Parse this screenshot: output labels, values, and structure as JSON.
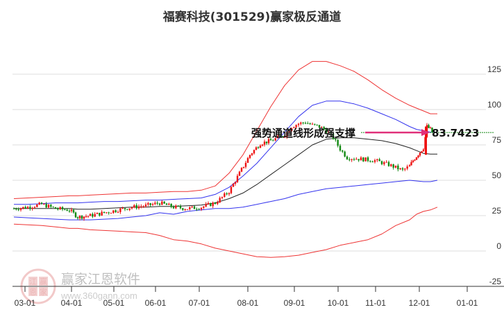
{
  "title": "福赛科技(301529)赢家极反通道",
  "annotation": {
    "text": "强势通道线形成强支撑",
    "value": "83.7423",
    "arrow_color": "#e0307a"
  },
  "watermark": {
    "brand": "赢家江恩软件",
    "url": "www.360gann.com",
    "logo_chars": [
      "江",
      "赢",
      "恩",
      "家"
    ]
  },
  "colors": {
    "up": "#ee1111",
    "down": "#118811",
    "outer_band": "#ee3333",
    "inner_band": "#3333ee",
    "mid_line": "#222222",
    "grid": "#dddddd",
    "ref_line": "#118811"
  },
  "chart_data": {
    "type": "line",
    "title": "福赛科技(301529)赢家极反通道",
    "xlabel": "",
    "ylabel": "",
    "ylim": [
      -25,
      135
    ],
    "yticks": [
      125,
      100,
      75,
      50,
      25,
      0,
      -25
    ],
    "xticks": [
      {
        "label": "03-01",
        "x": 36
      },
      {
        "label": "04-01",
        "x": 103
      },
      {
        "label": "05-01",
        "x": 164
      },
      {
        "label": "06-01",
        "x": 224
      },
      {
        "label": "07-01",
        "x": 287
      },
      {
        "label": "08-01",
        "x": 357
      },
      {
        "label": "09-01",
        "x": 424
      },
      {
        "label": "10-01",
        "x": 487
      },
      {
        "label": "11-01",
        "x": 541
      },
      {
        "label": "12-01",
        "x": 604
      },
      {
        "label": "01-01",
        "x": 673
      }
    ],
    "grid": true,
    "legend": null,
    "reference_line": {
      "value": 83.7423,
      "label": "83.7423"
    },
    "x_index": [
      20,
      40,
      60,
      80,
      100,
      112,
      130,
      150,
      170,
      190,
      210,
      230,
      250,
      270,
      290,
      310,
      330,
      350,
      370,
      390,
      410,
      430,
      450,
      470,
      490,
      510,
      530,
      550,
      570,
      590,
      600,
      610,
      620,
      630
    ],
    "series": [
      {
        "name": "outer_upper",
        "color": "#ee3333",
        "values": [
          37,
          37.5,
          38,
          38.5,
          39,
          39,
          39.5,
          40,
          40.5,
          41,
          41,
          41.5,
          42,
          42,
          43,
          46,
          55,
          68,
          85,
          102,
          117,
          128,
          134,
          134,
          131,
          127,
          121,
          114,
          108,
          103,
          101,
          99,
          97,
          97
        ]
      },
      {
        "name": "inner_upper",
        "color": "#3333ee",
        "values": [
          33,
          33,
          33.5,
          34,
          34,
          34,
          34.5,
          35,
          35,
          35.5,
          36,
          36,
          36.5,
          37,
          37.5,
          40,
          45,
          53,
          62,
          73,
          84,
          95,
          103,
          106,
          106,
          104,
          101,
          97,
          93,
          88,
          86,
          85,
          84,
          84
        ]
      },
      {
        "name": "mid",
        "color": "#222222",
        "values": [
          30,
          30,
          30,
          30,
          30,
          29.5,
          29.5,
          30,
          30.5,
          31,
          31,
          31.5,
          31.5,
          32,
          32.5,
          34,
          37,
          41,
          47,
          54,
          61,
          68,
          75,
          79,
          80,
          80,
          79,
          78,
          76,
          73,
          71,
          69,
          68.5,
          68.5
        ]
      },
      {
        "name": "inner_lower",
        "color": "#3333ee",
        "values": [
          24,
          23.5,
          23,
          22.5,
          22,
          22,
          22,
          22.5,
          23,
          24,
          25,
          27,
          26,
          28,
          29,
          30,
          30,
          31,
          33,
          35,
          37,
          40,
          42,
          44,
          45,
          46,
          47,
          48,
          49,
          50,
          49.5,
          49,
          49,
          50
        ]
      },
      {
        "name": "outer_lower",
        "color": "#ee3333",
        "values": [
          19,
          18.5,
          18,
          17,
          16,
          16,
          15,
          14.5,
          14,
          13.5,
          13,
          11,
          8,
          7,
          5,
          2,
          0,
          -2,
          -4,
          -4.5,
          -4,
          -3,
          -1,
          1,
          4,
          6,
          8,
          12,
          18,
          22,
          26,
          28,
          29,
          31
        ]
      }
    ],
    "candles_approx": {
      "description": "daily OHLC candlesticks, approximate close levels",
      "x": [
        20,
        40,
        60,
        80,
        100,
        112,
        130,
        150,
        170,
        190,
        210,
        230,
        250,
        270,
        290,
        310,
        330,
        345,
        360,
        375,
        390,
        400,
        410,
        420,
        430,
        440,
        450,
        460,
        470,
        480,
        490,
        500,
        520,
        540,
        560,
        580,
        590,
        595,
        600,
        605,
        610,
        615,
        620,
        625
      ],
      "close": [
        30,
        31,
        33,
        30,
        29,
        24,
        25,
        27,
        29,
        31,
        32,
        34,
        31,
        30,
        31,
        34,
        42,
        55,
        68,
        76,
        78,
        80,
        82,
        88,
        90,
        91,
        89,
        88,
        85,
        80,
        72,
        66,
        65,
        64,
        61,
        57,
        60,
        64,
        67,
        70,
        73,
        88,
        86,
        82
      ]
    }
  }
}
